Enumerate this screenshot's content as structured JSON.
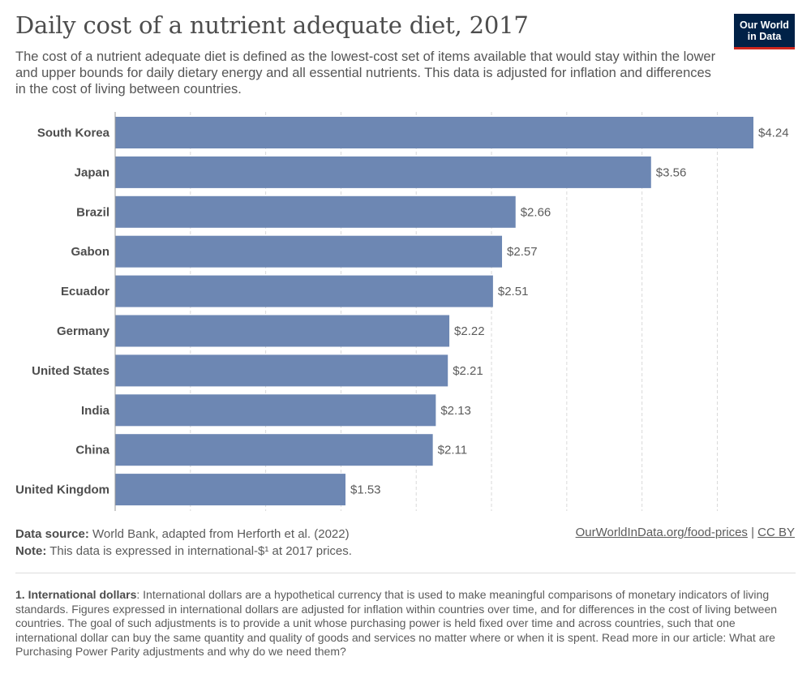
{
  "header": {
    "title": "Daily cost of a nutrient adequate diet, 2017",
    "subtitle": "The cost of a nutrient adequate diet is defined as the lowest-cost set of items available that would stay within the lower and upper bounds for daily dietary energy and all essential nutrients. This data is adjusted for inflation and differences in the cost of living between countries.",
    "logo_line1": "Our World",
    "logo_line2": "in Data"
  },
  "colors": {
    "bar": "#6d87b3",
    "grid": "#d9d9d9",
    "logo_bg": "#002147",
    "logo_accent": "#ce261e"
  },
  "chart_data": {
    "type": "bar",
    "orientation": "horizontal",
    "categories": [
      "South Korea",
      "Japan",
      "Brazil",
      "Gabon",
      "Ecuador",
      "Germany",
      "United States",
      "India",
      "China",
      "United Kingdom"
    ],
    "values": [
      4.24,
      3.56,
      2.66,
      2.57,
      2.51,
      2.22,
      2.21,
      2.13,
      2.11,
      1.53
    ],
    "value_labels": [
      "$4.24",
      "$3.56",
      "$2.66",
      "$2.57",
      "$2.51",
      "$2.22",
      "$2.21",
      "$2.13",
      "$2.11",
      "$1.53"
    ],
    "xlim": [
      0,
      4.24
    ],
    "grid": true
  },
  "footer": {
    "source_label": "Data source:",
    "source_text": " World Bank, adapted from Herforth et al. (2022)",
    "note_label": "Note:",
    "note_text": " This data is expressed in international-$¹ at 2017 prices.",
    "link_text": "OurWorldInData.org/food-prices",
    "separator": " | ",
    "license_text": "CC BY"
  },
  "footnote": {
    "label": "1. International dollars",
    "text": ": International dollars are a hypothetical currency that is used to make meaningful comparisons of monetary indicators of living standards. Figures expressed in international dollars are adjusted for inflation within countries over time, and for differences in the cost of living between countries. The goal of such adjustments is to provide a unit whose purchasing power is held fixed over time and across countries, such that one international dollar can buy the same quantity and quality of goods and services no matter where or when it is spent. Read more in our article: What are Purchasing Power Parity adjustments and why do we need them?"
  }
}
